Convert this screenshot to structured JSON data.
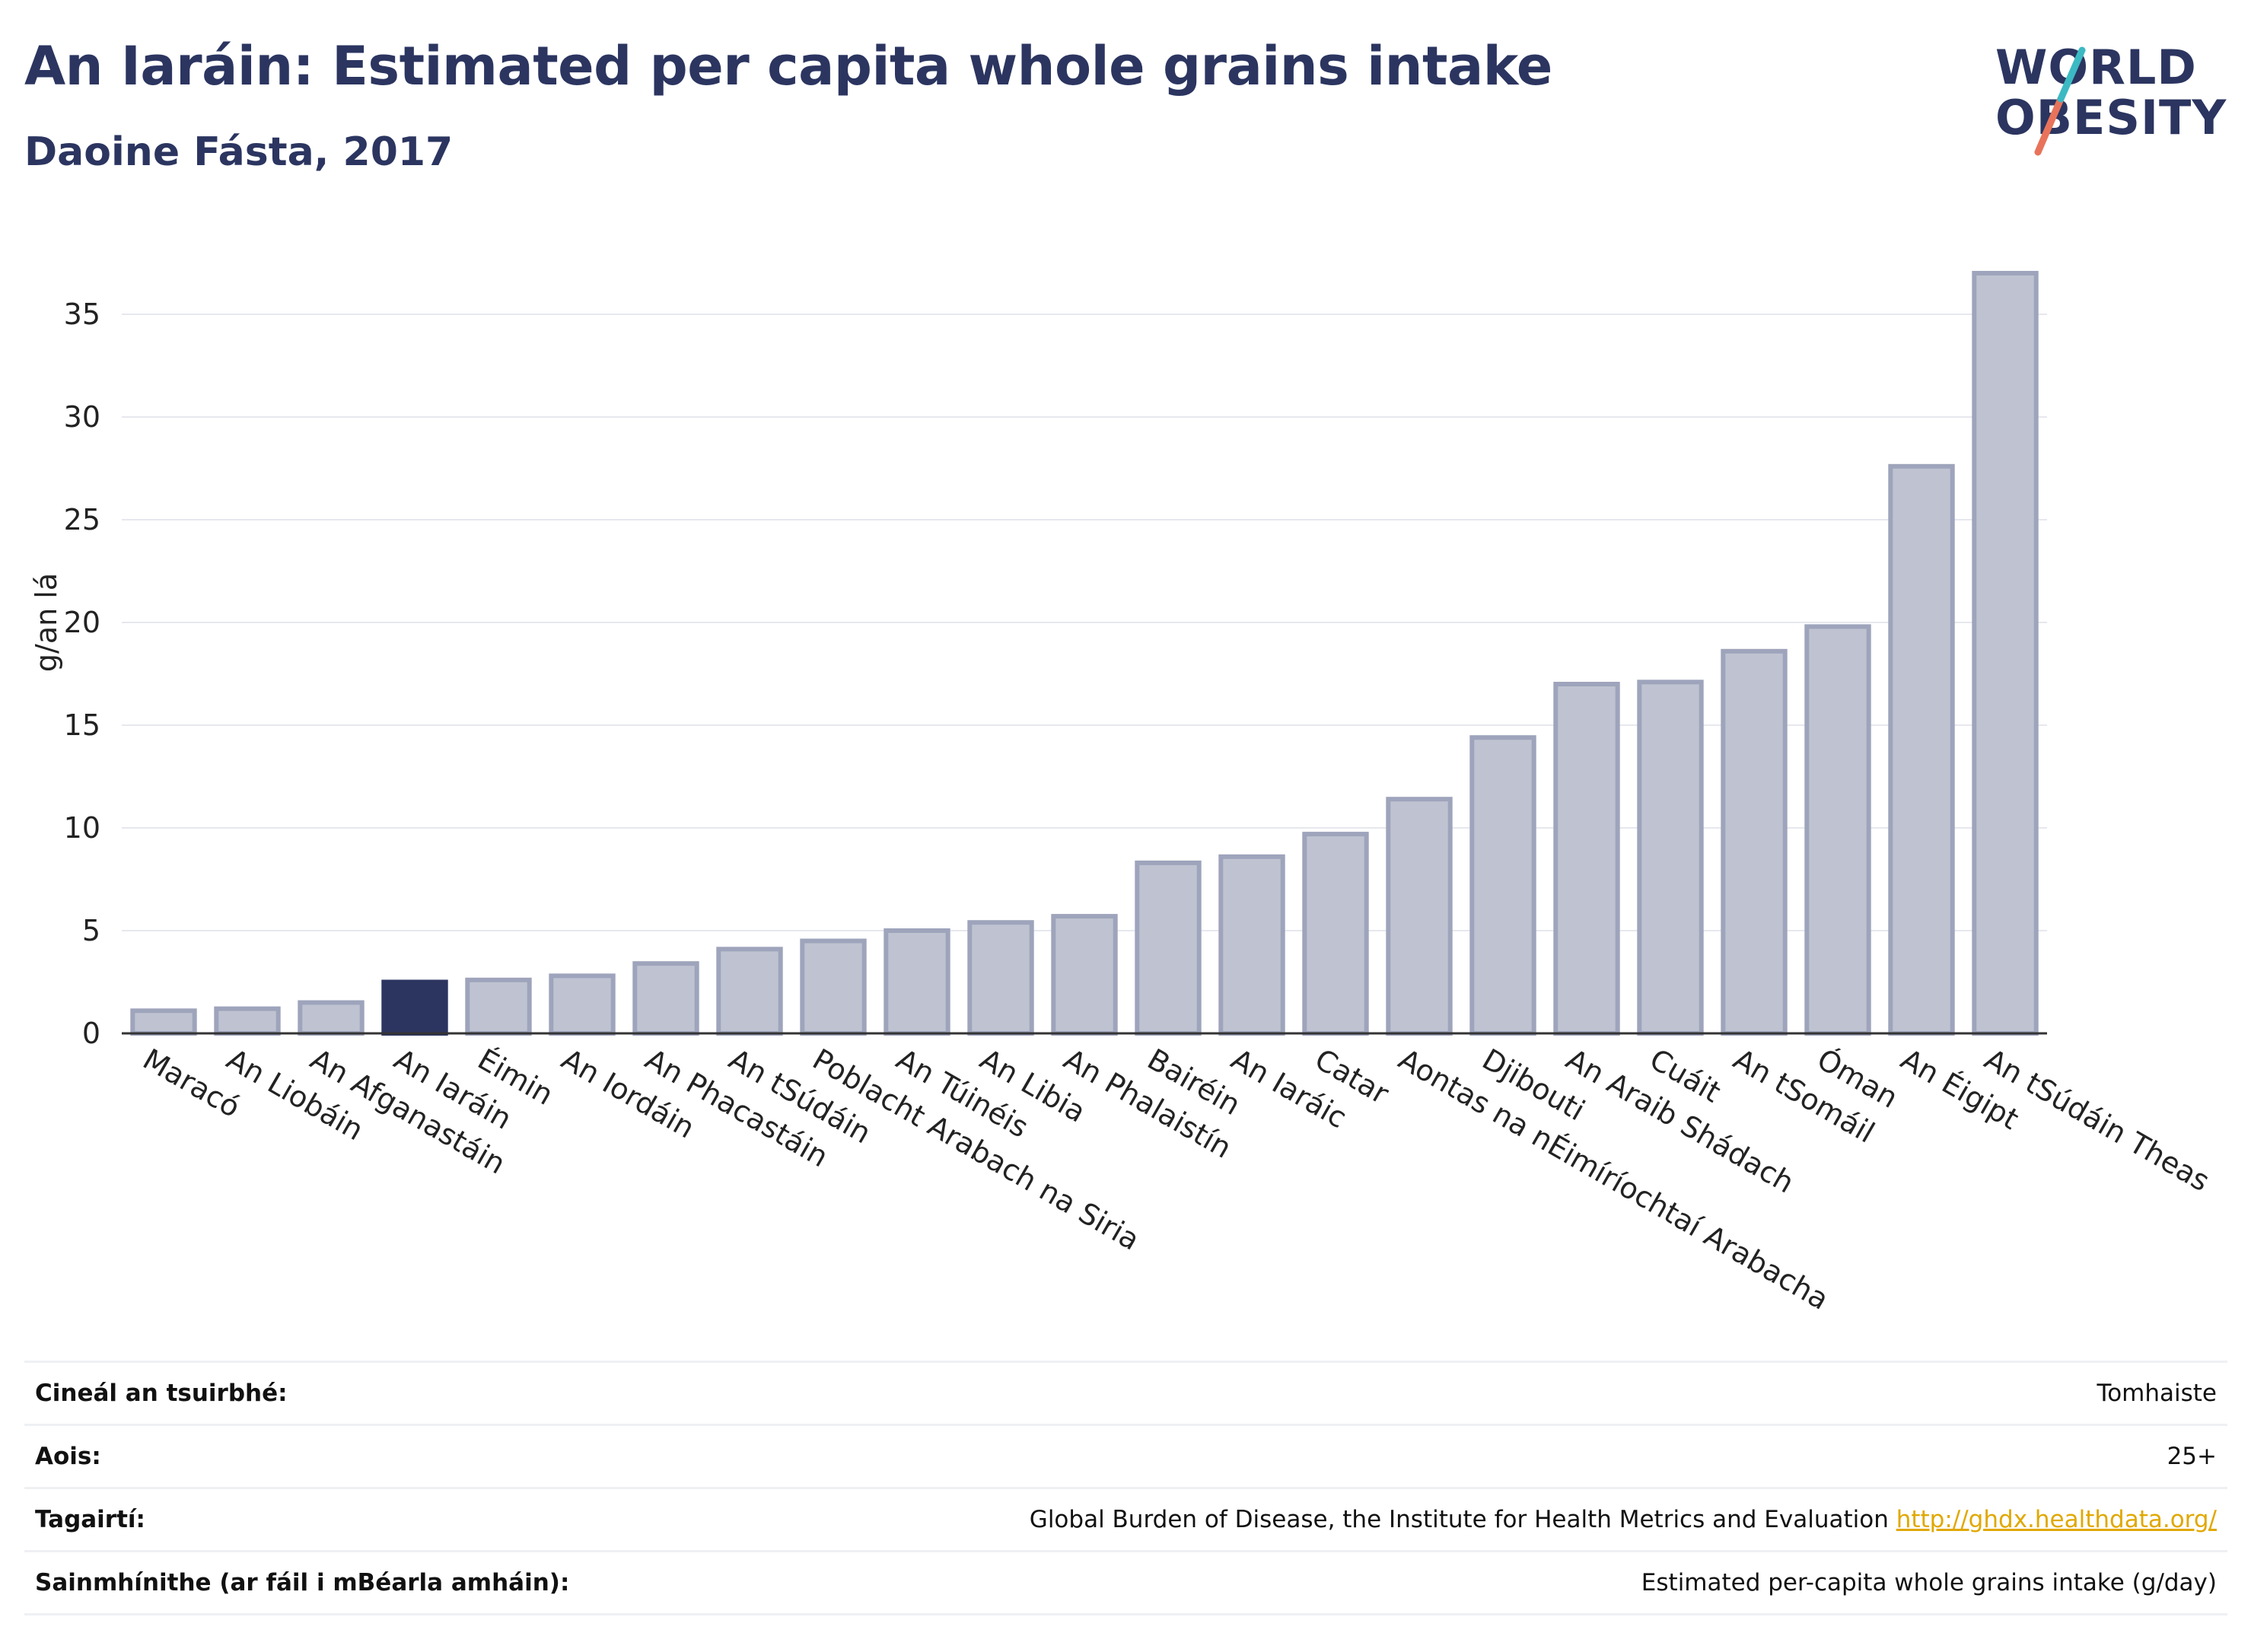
{
  "header": {
    "title": "An Iaráin: Estimated per capita whole grains intake",
    "subtitle": "Daoine Fásta, 2017",
    "logo_line1": "WORLD",
    "logo_line2": "OBESITY"
  },
  "chart_data": {
    "type": "bar",
    "ylabel": "g/an lá",
    "ylim": [
      0,
      38
    ],
    "yticks": [
      0,
      5,
      10,
      15,
      20,
      25,
      30,
      35
    ],
    "grid": true,
    "categories": [
      "Maracó",
      "An Liobáin",
      "An Afganastáin",
      "An Iaráin",
      "Éimin",
      "An Iordáin",
      "An Phacastáin",
      "An tSúdáin",
      "Poblacht Arabach na Siria",
      "An Túinéis",
      "An Libia",
      "An Phalaistín",
      "Bairéin",
      "An Iaráic",
      "Catar",
      "Aontas na nÉimíríochtaí Arabacha",
      "Djibouti",
      "An Araib Shádach",
      "Cuáit",
      "An tSomáil",
      "Óman",
      "An Éigipt",
      "An tSúdáin Theas"
    ],
    "values": [
      1.1,
      1.2,
      1.5,
      2.5,
      2.6,
      2.8,
      3.4,
      4.1,
      4.5,
      5.0,
      5.4,
      5.7,
      8.3,
      8.6,
      9.7,
      11.4,
      14.4,
      17.0,
      17.1,
      18.6,
      19.8,
      27.6,
      37.0
    ],
    "highlight": "An Iaráin",
    "colors": {
      "bar": "#bfc3d1",
      "bar_stroke": "#9ea4bb",
      "highlight": "#2b3560"
    }
  },
  "info": {
    "rows": [
      {
        "key": "Cineál an tsuirbhé:",
        "value": "Tomhaiste"
      },
      {
        "key": "Aois:",
        "value": "25+"
      },
      {
        "key": "Tagairtí:",
        "value": "Global Burden of Disease, the Institute for Health Metrics and Evaluation",
        "link": "http://ghdx.healthdata.org/"
      },
      {
        "key": "Sainmhínithe (ar fáil i mBéarla amháin):",
        "value": "Estimated per-capita whole grains intake (g/day)"
      }
    ]
  }
}
